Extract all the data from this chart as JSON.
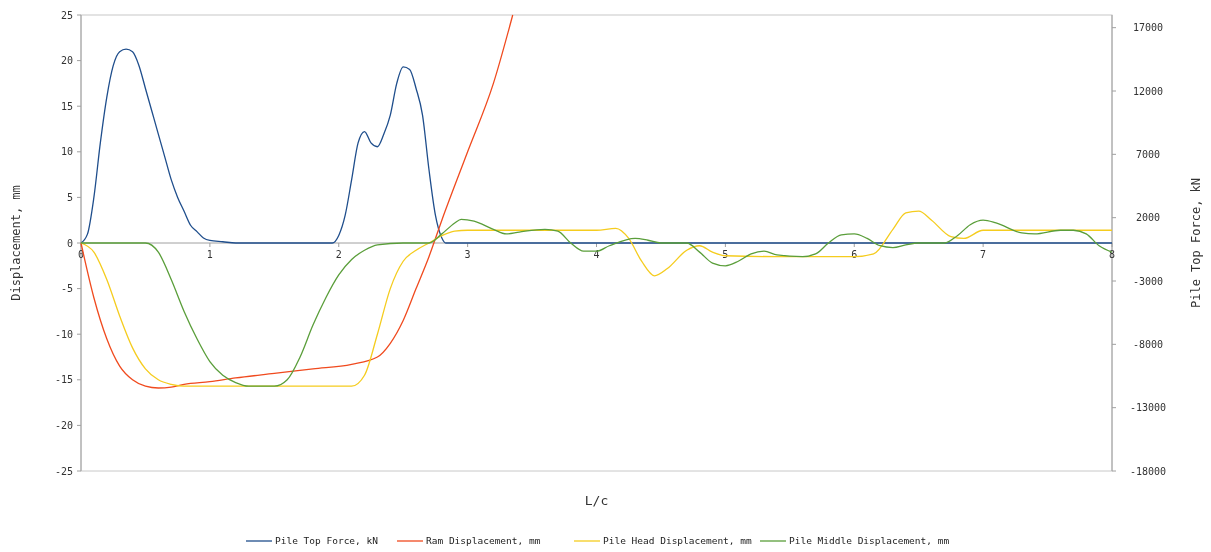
{
  "chart_data": {
    "type": "line",
    "xlabel": "L/c",
    "ylabel": "Displacement, mm",
    "y2label": "Pile Top Force, kN",
    "xlim": [
      0,
      8
    ],
    "xticks": [
      0,
      1,
      2,
      3,
      4,
      5,
      6,
      7,
      8
    ],
    "ylim": [
      -25,
      25
    ],
    "yticks": [
      -25,
      -20,
      -15,
      -10,
      -5,
      0,
      5,
      10,
      15,
      20,
      25
    ],
    "y2lim": [
      -18000,
      18000
    ],
    "y2ticks": [
      -18000,
      -13000,
      -8000,
      -3000,
      2000,
      7000,
      12000,
      17000
    ],
    "grid": false,
    "legend": "bottom",
    "marker": "none",
    "line_style": "solid",
    "series": [
      {
        "name": "Pile Top Force, kN",
        "color": "#1f4e8c",
        "axis": "y2",
        "x": [
          0,
          0.05,
          0.1,
          0.15,
          0.2,
          0.25,
          0.3,
          0.35,
          0.4,
          0.45,
          0.5,
          0.55,
          0.6,
          0.65,
          0.7,
          0.75,
          0.8,
          0.85,
          0.9,
          0.95,
          1.0,
          1.1,
          1.2,
          1.95,
          2.0,
          2.05,
          2.1,
          2.15,
          2.2,
          2.25,
          2.3,
          2.35,
          2.4,
          2.45,
          2.5,
          2.55,
          2.6,
          2.65,
          2.7,
          2.75,
          2.8,
          2.83,
          8
        ],
        "values": [
          0,
          700,
          3600,
          7900,
          11500,
          14000,
          15100,
          15300,
          15100,
          14000,
          12200,
          10400,
          8600,
          6800,
          5000,
          3600,
          2500,
          1400,
          900,
          400,
          200,
          100,
          0,
          0,
          600,
          2200,
          5000,
          7900,
          8800,
          7900,
          7600,
          8600,
          10100,
          12600,
          13900,
          13700,
          12200,
          10100,
          5800,
          2200,
          400,
          0,
          0
        ]
      },
      {
        "name": "Ram Displacement, mm",
        "color": "#f04a1e",
        "x": [
          0,
          0.1,
          0.2,
          0.3,
          0.4,
          0.5,
          0.6,
          0.7,
          0.8,
          1.0,
          1.2,
          1.5,
          1.8,
          2.1,
          2.3,
          2.4,
          2.5,
          2.6,
          2.7,
          2.8,
          3.0,
          3.2,
          3.35
        ],
        "values": [
          0,
          -6,
          -10.5,
          -13.5,
          -15,
          -15.7,
          -15.9,
          -15.8,
          -15.5,
          -15.2,
          -14.8,
          -14.3,
          -13.8,
          -13.3,
          -12.5,
          -11,
          -8.5,
          -5,
          -1.5,
          2.5,
          10,
          17.5,
          25
        ]
      },
      {
        "name": "Pile Head Displacement, mm",
        "color": "#f5cc1e",
        "x": [
          0,
          0.1,
          0.2,
          0.3,
          0.4,
          0.5,
          0.6,
          0.7,
          0.8,
          1.0,
          2.1,
          2.2,
          2.3,
          2.4,
          2.5,
          2.6,
          2.7,
          2.8,
          2.9,
          3.0,
          3.5,
          4.0,
          4.15,
          4.25,
          4.35,
          4.45,
          4.55,
          4.7,
          4.8,
          4.9,
          5.0,
          5.5,
          6.0,
          6.15,
          6.3,
          6.4,
          6.5,
          6.6,
          6.75,
          6.85,
          7.0,
          8.0
        ],
        "values": [
          0,
          -1,
          -4,
          -8,
          -11.5,
          -13.8,
          -15,
          -15.5,
          -15.7,
          -15.7,
          -15.7,
          -14.5,
          -10,
          -5,
          -2,
          -0.8,
          0,
          0.8,
          1.3,
          1.4,
          1.4,
          1.4,
          1.6,
          0.5,
          -2,
          -3.6,
          -2.8,
          -0.8,
          -0.3,
          -1,
          -1.4,
          -1.5,
          -1.5,
          -1.2,
          1.5,
          3.3,
          3.5,
          2.5,
          0.7,
          0.5,
          1.4,
          1.4
        ]
      },
      {
        "name": "Pile Middle Displacement, mm",
        "color": "#5a9e3a",
        "x": [
          0,
          0.5,
          0.6,
          0.7,
          0.8,
          0.9,
          1.0,
          1.1,
          1.2,
          1.3,
          1.5,
          1.6,
          1.7,
          1.8,
          1.9,
          2.0,
          2.1,
          2.2,
          2.3,
          2.5,
          2.7,
          2.8,
          2.9,
          2.95,
          3.05,
          3.2,
          3.3,
          3.4,
          3.6,
          3.7,
          3.8,
          3.9,
          4.0,
          4.1,
          4.3,
          4.4,
          4.5,
          4.7,
          4.8,
          4.9,
          5.0,
          5.1,
          5.2,
          5.3,
          5.4,
          5.6,
          5.7,
          5.8,
          5.9,
          6.0,
          6.1,
          6.2,
          6.3,
          6.4,
          6.5,
          6.7,
          6.8,
          6.9,
          7.0,
          7.1,
          7.3,
          7.4,
          7.6,
          7.7,
          7.8,
          7.9,
          8.0
        ],
        "values": [
          0,
          0,
          -1,
          -4,
          -7.5,
          -10.5,
          -13,
          -14.5,
          -15.3,
          -15.7,
          -15.7,
          -15,
          -12.5,
          -9,
          -6,
          -3.5,
          -1.8,
          -0.8,
          -0.2,
          0,
          0,
          1,
          2.2,
          2.6,
          2.4,
          1.5,
          1.0,
          1.2,
          1.5,
          1.3,
          0,
          -0.9,
          -0.9,
          -0.3,
          0.5,
          0.3,
          0,
          0,
          -1,
          -2.2,
          -2.5,
          -2,
          -1.2,
          -0.9,
          -1.3,
          -1.5,
          -1.2,
          0,
          0.9,
          1.0,
          0.5,
          -0.3,
          -0.5,
          -0.2,
          0,
          0,
          0.8,
          2,
          2.5,
          2.2,
          1.1,
          1.0,
          1.4,
          1.4,
          1.0,
          -0.3,
          -1
        ]
      }
    ]
  }
}
